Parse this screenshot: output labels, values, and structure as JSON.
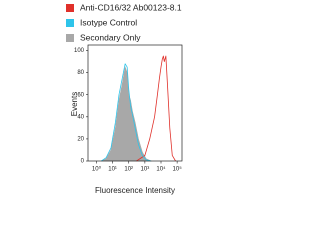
{
  "chart_data": {
    "type": "line",
    "xscale": "log",
    "x_label": "Fluorescence Intensity",
    "y_label": "Events",
    "xlim": [
      0.3,
      200000
    ],
    "ylim": [
      0,
      105
    ],
    "xticks": [
      {
        "value": 1,
        "label": "10⁰"
      },
      {
        "value": 10,
        "label": "10¹"
      },
      {
        "value": 100,
        "label": "10²"
      },
      {
        "value": 1000,
        "label": "10³"
      },
      {
        "value": 10000,
        "label": "10⁴"
      },
      {
        "value": 100000,
        "label": "10⁵"
      }
    ],
    "yticks": [
      0,
      20,
      40,
      60,
      80,
      100
    ],
    "series": [
      {
        "name": "Anti-CD16/32 Ab00123-8.1",
        "color": "#e0302a",
        "filled": false,
        "x": [
          300,
          1000,
          2000,
          4000,
          6000,
          8000,
          10000,
          12000,
          14000,
          16000,
          20000,
          25000,
          35000,
          50000,
          80000
        ],
        "values": [
          0,
          5,
          20,
          40,
          60,
          75,
          85,
          92,
          95,
          90,
          95,
          70,
          30,
          5,
          0
        ]
      },
      {
        "name": "Isotype Control",
        "color": "#2ec4ea",
        "filled": false,
        "x": [
          2,
          4,
          8,
          15,
          25,
          40,
          60,
          80,
          100,
          130,
          170,
          250,
          400,
          700,
          1200,
          2500
        ],
        "values": [
          0,
          3,
          12,
          35,
          60,
          75,
          88,
          85,
          65,
          50,
          42,
          30,
          15,
          5,
          1,
          0
        ]
      },
      {
        "name": "Secondary Only",
        "color": "#a8a8a8",
        "filled": true,
        "x": [
          2,
          4,
          8,
          15,
          25,
          40,
          60,
          80,
          100,
          130,
          170,
          250,
          400,
          700,
          1200,
          2500
        ],
        "values": [
          0,
          2,
          10,
          30,
          55,
          70,
          85,
          80,
          60,
          55,
          45,
          35,
          20,
          8,
          2,
          0
        ]
      }
    ]
  }
}
